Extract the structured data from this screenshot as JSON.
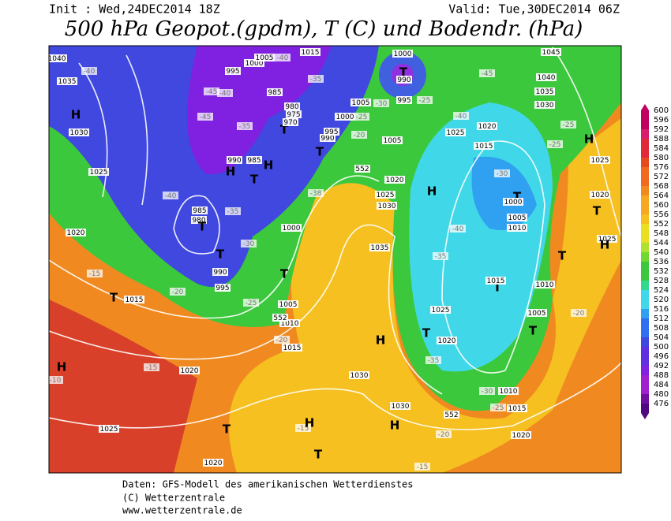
{
  "header": {
    "init": "Init : Wed,24DEC2014 18Z",
    "valid": "Valid: Tue,30DEC2014 06Z",
    "title": "500 hPa Geopot.(gpdm), T (C) und Bodendr. (hPa)"
  },
  "colorbar": {
    "labels": [
      "600",
      "596",
      "592",
      "588",
      "584",
      "580",
      "576",
      "572",
      "568",
      "564",
      "560",
      "556",
      "552",
      "548",
      "544",
      "540",
      "536",
      "532",
      "528",
      "524",
      "520",
      "516",
      "512",
      "508",
      "504",
      "500",
      "496",
      "492",
      "488",
      "484",
      "480",
      "476"
    ]
  },
  "map_labels": [
    "1040",
    "1035",
    "-40",
    "H",
    "1030",
    "1025",
    "1020",
    "-15",
    "T",
    "1015",
    "-20",
    "H",
    "-15",
    "-10",
    "1020",
    "1025",
    "T",
    "-15",
    "H",
    "T",
    "1020",
    "-15",
    "-20",
    "1020",
    "H",
    "1030",
    "1030",
    "H",
    "1015",
    "-20",
    "1010",
    "1005",
    "T",
    "1000",
    "T",
    "990",
    "995",
    "-25",
    "-30",
    "985",
    "980",
    "T",
    "-35",
    "-40",
    "H",
    "T",
    "990",
    "985",
    "H",
    "-45",
    "-40",
    "-45",
    "T",
    "-35",
    "995",
    "1000",
    "1005",
    "-40",
    "1015",
    "-35",
    "985",
    "980",
    "975",
    "970",
    "T",
    "990",
    "995",
    "1005",
    "-30",
    "1000",
    "-25",
    "-20",
    "1000",
    "T",
    "990",
    "995",
    "-25",
    "-45",
    "1045",
    "1040",
    "1035",
    "1030",
    "-40",
    "1025",
    "1020",
    "1015",
    "-25",
    "-25",
    "H",
    "1025",
    "-30",
    "T",
    "1000",
    "1005",
    "1010",
    "1020",
    "T",
    "1025",
    "H",
    "T",
    "1010",
    "T",
    "1015",
    "-40",
    "-35",
    "H",
    "1020",
    "1025",
    "1030",
    "1035",
    "-38",
    "552",
    "1005",
    "1025",
    "T",
    "1020",
    "-35",
    "T",
    "1005",
    "-20",
    "-30",
    "1010",
    "-25",
    "1015",
    "552",
    "552"
  ],
  "footer": {
    "line1": "Daten: GFS-Modell des amerikanischen Wetterdienstes",
    "line2": "(C) Wetterzentrale",
    "line3": "www.wetterzentrale.de"
  }
}
